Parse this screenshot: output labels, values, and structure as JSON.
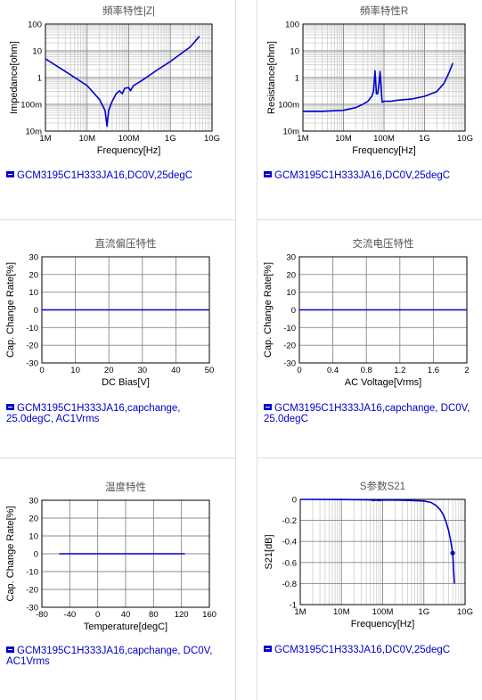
{
  "panels": [
    {
      "legend": "GCM3195C1H333JA16,DC0V,25degC"
    },
    {
      "legend": "GCM3195C1H333JA16,DC0V,25degC"
    },
    {
      "legend": "GCM3195C1H333JA16,capchange, 25.0degC, AC1Vrms"
    },
    {
      "legend": "GCM3195C1H333JA16,capchange, DC0V, 25.0degC"
    },
    {
      "legend": "GCM3195C1H333JA16,capchange, DC0V, AC1Vrms"
    },
    {
      "legend": "GCM3195C1H333JA16,DC0V,25degC"
    }
  ],
  "colors": {
    "series": "#0000cc",
    "grid": "#cccccc",
    "major_grid": "#888888"
  },
  "chart_data": [
    {
      "type": "line",
      "title": "頻率特性|Z|",
      "xlabel": "Frequency[Hz]",
      "ylabel": "Impedance[ohm]",
      "xscale": "log",
      "yscale": "log",
      "xlim": [
        1000000,
        10000000000
      ],
      "ylim": [
        0.01,
        100
      ],
      "xticks": [
        "1M",
        "10M",
        "100M",
        "1G",
        "10G"
      ],
      "yticks": [
        "100",
        "10",
        "1",
        "100m",
        "10m"
      ],
      "series": [
        {
          "x": [
            1000000.0,
            3000000.0,
            10000000.0,
            20000000.0,
            27000000.0,
            30000000.0,
            33000000.0,
            40000000.0,
            50000000.0,
            60000000.0,
            70000000.0,
            80000000.0,
            100000000.0,
            110000000.0,
            130000000.0,
            200000000.0,
            500000000.0,
            1000000000.0,
            3000000000.0,
            5000000000.0
          ],
          "y": [
            5,
            1.7,
            0.5,
            0.15,
            0.06,
            0.015,
            0.06,
            0.13,
            0.25,
            0.32,
            0.25,
            0.4,
            0.42,
            0.32,
            0.5,
            0.75,
            2.0,
            4.0,
            14,
            35
          ]
        }
      ]
    },
    {
      "type": "line",
      "title": "頻率特性R",
      "xlabel": "Frequency[Hz]",
      "ylabel": "Resistance[ohm]",
      "xscale": "log",
      "yscale": "log",
      "xlim": [
        1000000,
        10000000000
      ],
      "ylim": [
        0.01,
        100
      ],
      "xticks": [
        "1M",
        "10M",
        "100M",
        "1G",
        "10G"
      ],
      "yticks": [
        "100",
        "10",
        "1",
        "100m",
        "10m"
      ],
      "series": [
        {
          "x": [
            1000000.0,
            3000000.0,
            10000000.0,
            20000000.0,
            30000000.0,
            40000000.0,
            50000000.0,
            55000000.0,
            60000000.0,
            65000000.0,
            70000000.0,
            75000000.0,
            80000000.0,
            90000000.0,
            100000000.0,
            150000000.0,
            200000000.0,
            500000000.0,
            1000000000.0,
            2000000000.0,
            3000000000.0,
            4000000000.0,
            5000000000.0
          ],
          "y": [
            0.055,
            0.055,
            0.06,
            0.075,
            0.1,
            0.13,
            0.2,
            0.3,
            1.8,
            0.25,
            0.25,
            0.55,
            1.7,
            0.12,
            0.13,
            0.13,
            0.14,
            0.16,
            0.2,
            0.3,
            0.6,
            1.5,
            3.5
          ]
        }
      ]
    },
    {
      "type": "line",
      "title": "直流偏压特性",
      "xlabel": "DC Bias[V]",
      "ylabel": "Cap. Change Rate[%]",
      "xlim": [
        0,
        50
      ],
      "ylim": [
        -30,
        30
      ],
      "xticks": [
        "0",
        "10",
        "20",
        "30",
        "40",
        "50"
      ],
      "yticks": [
        "30",
        "20",
        "10",
        "0",
        "-10",
        "-20",
        "-30"
      ],
      "series": [
        {
          "x": [
            0,
            50
          ],
          "y": [
            0,
            0
          ]
        }
      ]
    },
    {
      "type": "line",
      "title": "交流电压特性",
      "xlabel": "AC Voltage[Vrms]",
      "ylabel": "Cap. Change Rate[%]",
      "xlim": [
        0,
        2
      ],
      "ylim": [
        -30,
        30
      ],
      "xticks": [
        "0",
        "0.4",
        "0.8",
        "1.2",
        "1.6",
        "2"
      ],
      "yticks": [
        "30",
        "20",
        "10",
        "0",
        "-10",
        "-20",
        "-30"
      ],
      "series": [
        {
          "x": [
            0,
            2
          ],
          "y": [
            0,
            0
          ]
        }
      ]
    },
    {
      "type": "line",
      "title": "温度特性",
      "xlabel": "Temperature[degC]",
      "ylabel": "Cap. Change Rate[%]",
      "xlim": [
        -80,
        160
      ],
      "ylim": [
        -30,
        30
      ],
      "xticks": [
        "-80",
        "-40",
        "0",
        "40",
        "80",
        "120",
        "160"
      ],
      "yticks": [
        "30",
        "20",
        "10",
        "0",
        "-10",
        "-20",
        "-30"
      ],
      "series": [
        {
          "x": [
            -55,
            125
          ],
          "y": [
            0,
            0
          ]
        }
      ]
    },
    {
      "type": "line",
      "title": "S参数S21",
      "xlabel": "Frequency[Hz]",
      "ylabel": "S21[dB]",
      "xscale": "log",
      "xlim": [
        1000000,
        10000000000
      ],
      "ylim": [
        -1,
        0
      ],
      "xticks": [
        "1M",
        "10M",
        "100M",
        "1G",
        "10G"
      ],
      "yticks": [
        "0",
        "-0.2",
        "-0.4",
        "-0.6",
        "-0.8",
        "-1"
      ],
      "marker": {
        "x": 5000000000,
        "y": -0.51
      },
      "series": [
        {
          "x": [
            1000000.0,
            10000000.0,
            50000000.0,
            60000000.0,
            70000000.0,
            80000000.0,
            100000000.0,
            300000000.0,
            1000000000.0,
            1500000000.0,
            2000000000.0,
            2500000000.0,
            3000000000.0,
            3500000000.0,
            4000000000.0,
            4500000000.0,
            5000000000.0,
            5500000000.0
          ],
          "y": [
            0,
            -0.002,
            -0.005,
            -0.012,
            -0.006,
            -0.012,
            -0.006,
            -0.008,
            -0.015,
            -0.03,
            -0.06,
            -0.1,
            -0.15,
            -0.22,
            -0.3,
            -0.4,
            -0.51,
            -0.8
          ]
        }
      ]
    }
  ]
}
